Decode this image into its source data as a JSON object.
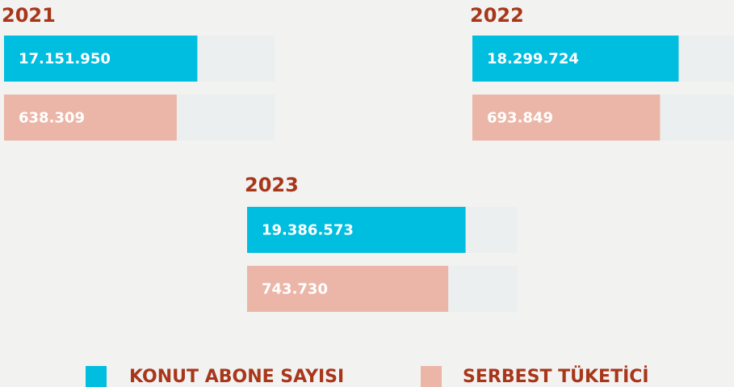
{
  "chart_data": {
    "type": "bar",
    "orientation": "horizontal",
    "categories": [
      "2021",
      "2022",
      "2023"
    ],
    "series": [
      {
        "name": "KONUT ABONE SAYISI",
        "color": "#00bedf",
        "values": [
          17151950,
          18299724,
          19386573
        ],
        "value_labels": [
          "17.151.950",
          "18.299.724",
          "19.386.573"
        ],
        "xlim": [
          0,
          24000000
        ]
      },
      {
        "name": "SERBEST TÜKETİCİ",
        "color": "#ebb6a7",
        "values": [
          638309,
          693849,
          743730
        ],
        "value_labels": [
          "638.309",
          "693.849",
          "743.730"
        ],
        "xlim": [
          0,
          1000000
        ]
      }
    ],
    "legend": "bottom"
  }
}
